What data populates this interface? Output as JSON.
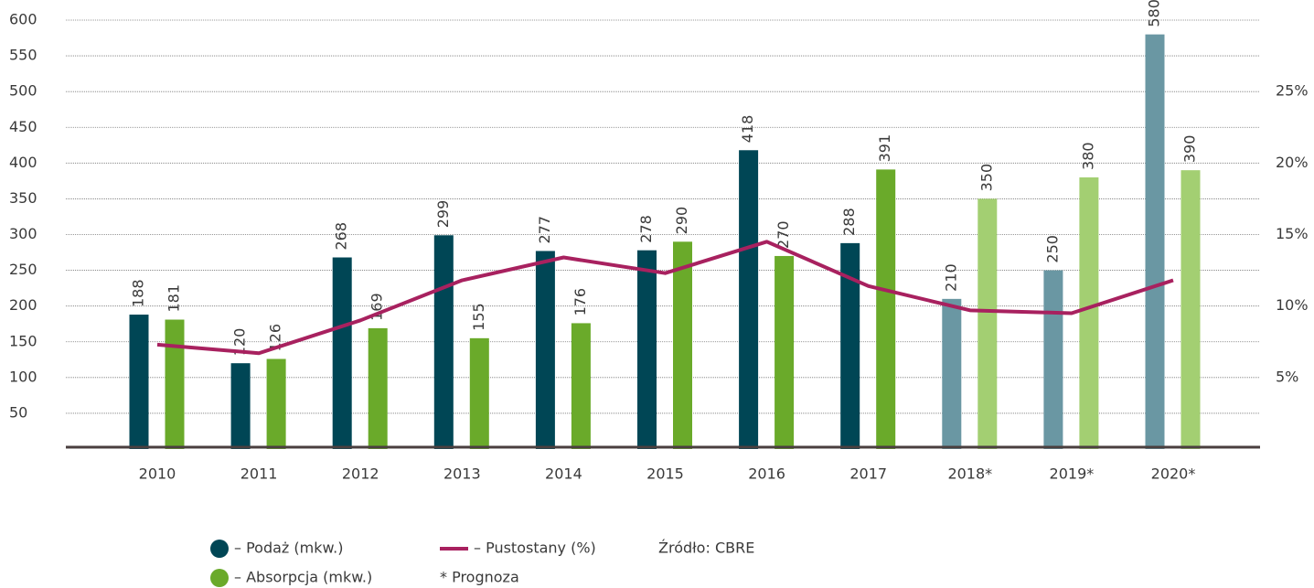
{
  "chart_data": {
    "type": "bar",
    "categories": [
      "2010",
      "2011",
      "2012",
      "2013",
      "2014",
      "2015",
      "2016",
      "2017",
      "2018*",
      "2019*",
      "2020*"
    ],
    "series": [
      {
        "name": "– Podaż (mkw.)",
        "color": "#004655",
        "colors": [
          "#004655",
          "#004655",
          "#004655",
          "#004655",
          "#004655",
          "#004655",
          "#004655",
          "#004655",
          "#6a97a3",
          "#6a97a3",
          "#6a97a3"
        ],
        "values": [
          188,
          120,
          268,
          299,
          277,
          278,
          418,
          288,
          210,
          250,
          580
        ]
      },
      {
        "name": "– Absorpcja (mkw.)",
        "color": "#6aaa2a",
        "colors": [
          "#6aaa2a",
          "#6aaa2a",
          "#6aaa2a",
          "#6aaa2a",
          "#6aaa2a",
          "#6aaa2a",
          "#6aaa2a",
          "#6aaa2a",
          "#a3cf72",
          "#a3cf72",
          "#a3cf72"
        ],
        "values": [
          181,
          126,
          169,
          155,
          176,
          290,
          270,
          391,
          350,
          380,
          390
        ]
      },
      {
        "name": "– Pustostany (%)",
        "color": "#a8215f",
        "type": "line",
        "axis": "y2",
        "values": [
          7.3,
          6.7,
          9.0,
          11.8,
          13.4,
          12.3,
          14.5,
          11.4,
          9.7,
          9.5,
          11.8
        ]
      }
    ],
    "ylim": [
      0,
      600
    ],
    "yticks": [
      50,
      100,
      150,
      200,
      250,
      300,
      350,
      400,
      450,
      500,
      550,
      600
    ],
    "y2lim": [
      0,
      30
    ],
    "y2ticks": [
      {
        "value": 5,
        "label": "5%"
      },
      {
        "value": 10,
        "label": "10%"
      },
      {
        "value": 15,
        "label": "15%"
      },
      {
        "value": 20,
        "label": "20%"
      },
      {
        "value": 25,
        "label": "25%"
      }
    ],
    "grid": true,
    "source": "Źródło: CBRE",
    "note": "* Prognoza"
  }
}
